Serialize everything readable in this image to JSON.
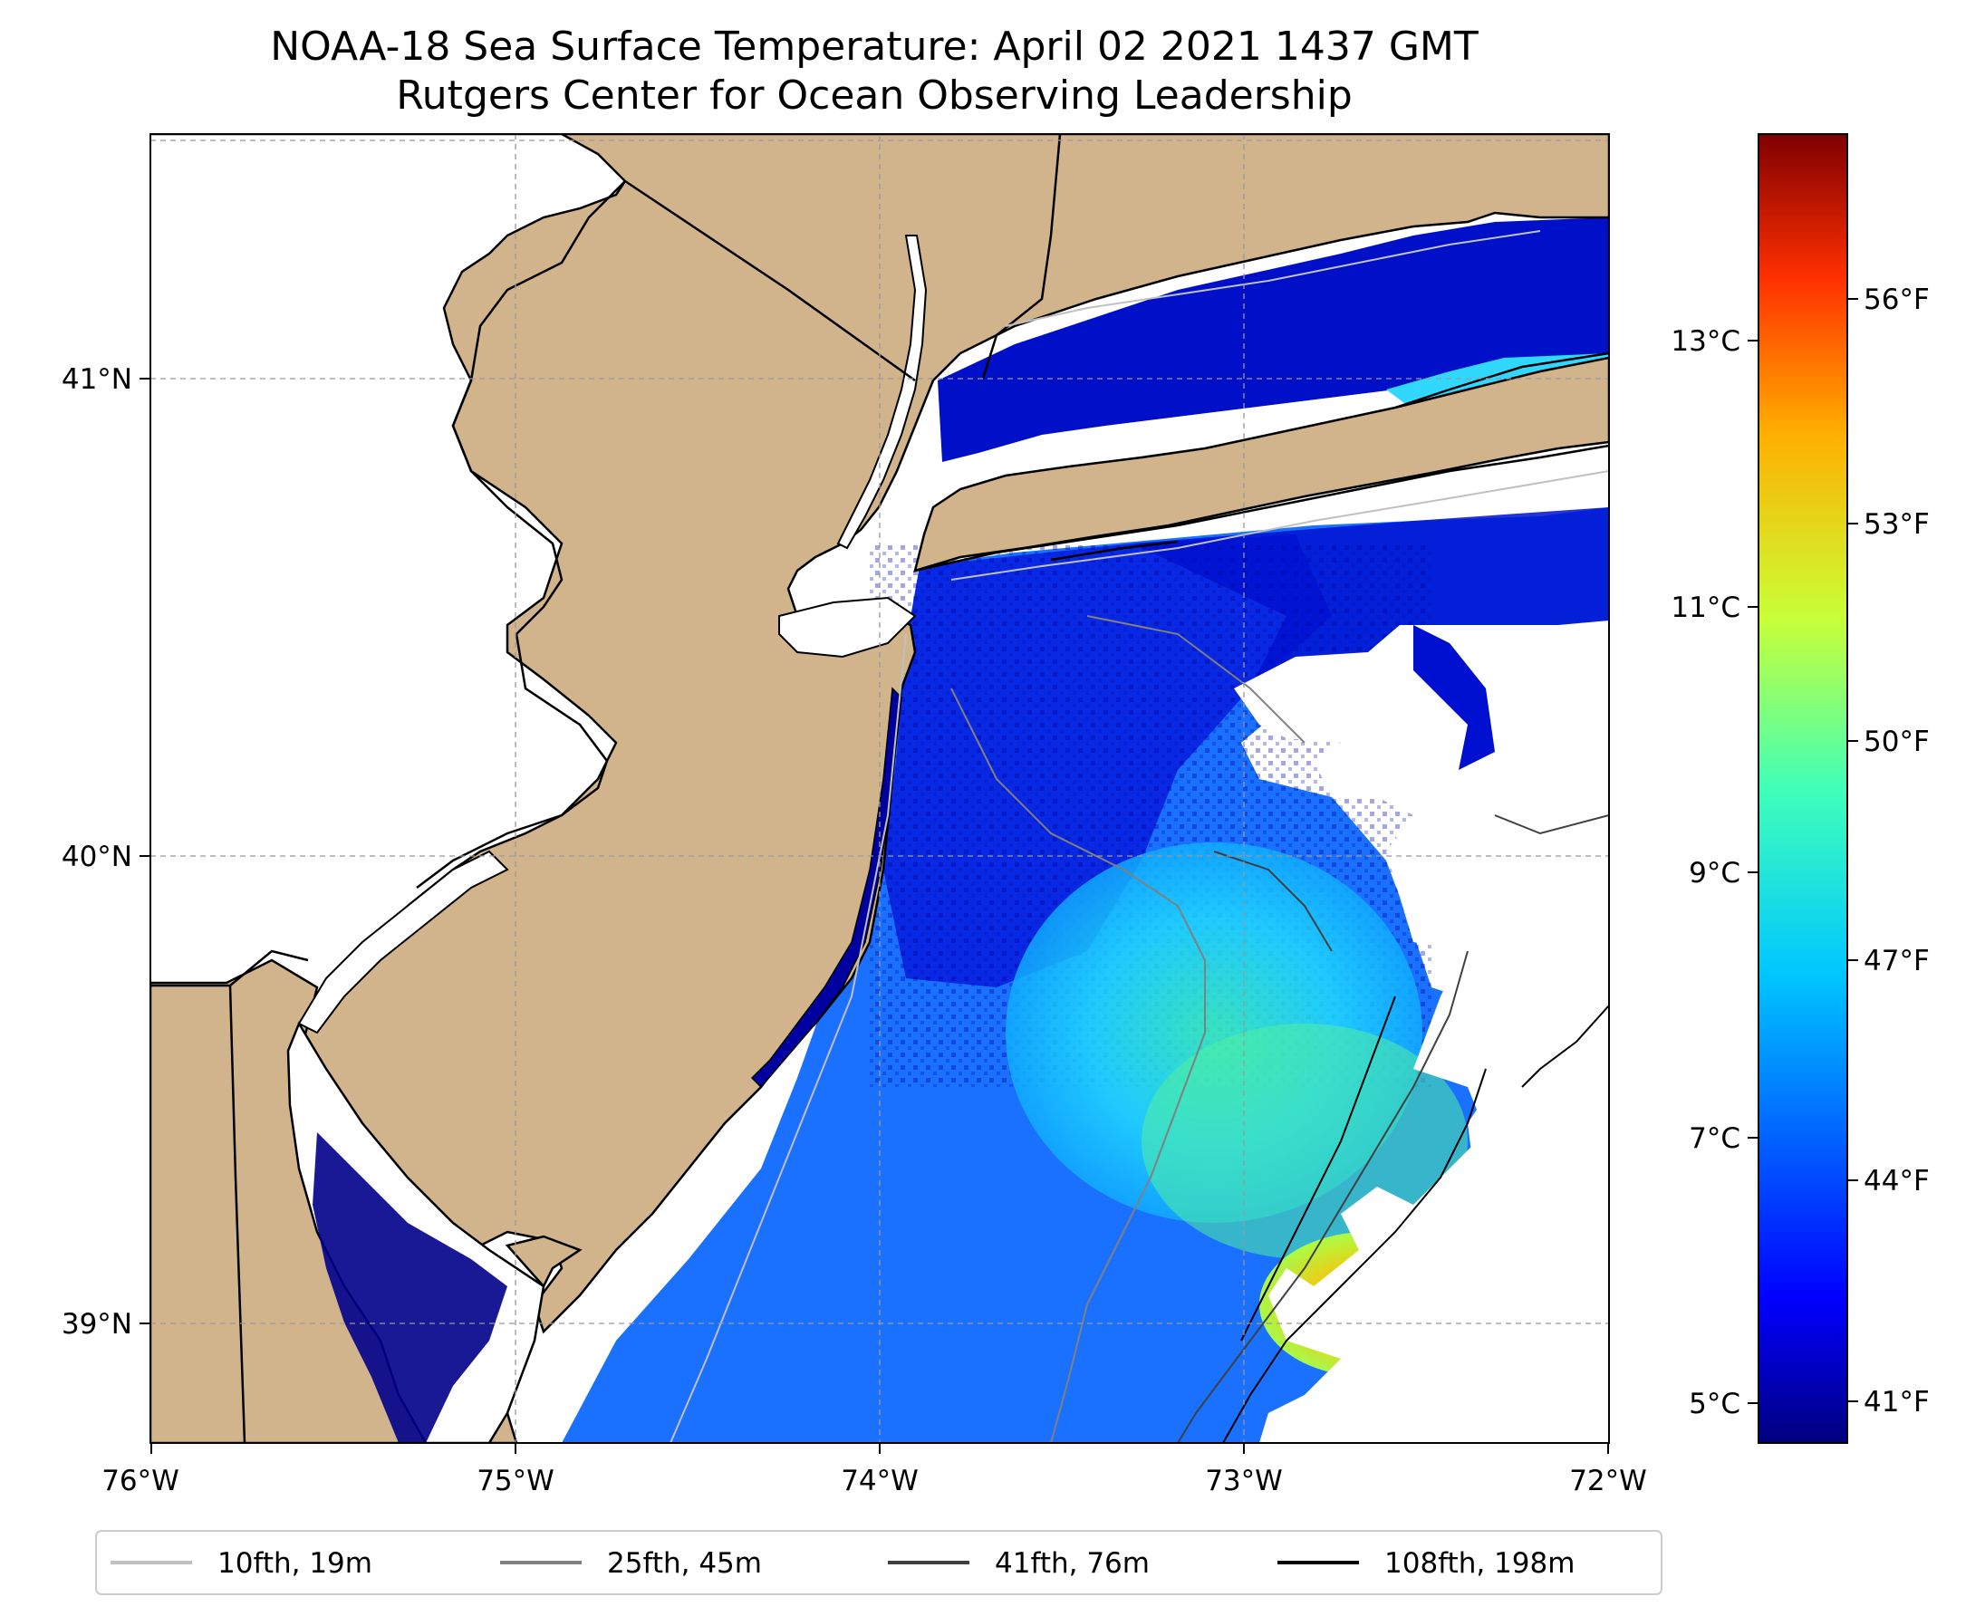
{
  "title": {
    "line1": "NOAA-18 Sea Surface Temperature: April 02 2021 1437 GMT",
    "line2": "Rutgers Center for Ocean Observing Leadership"
  },
  "map": {
    "lon_range": [
      -76,
      -72
    ],
    "lat_range": [
      38.75,
      41.5
    ],
    "x_ticks": [
      "76°W",
      "75°W",
      "74°W",
      "73°W",
      "72°W"
    ],
    "y_ticks": [
      "41°N",
      "40°N",
      "39°N"
    ],
    "land_color": "#d2b48c",
    "gridlines": true
  },
  "colorbar": {
    "colormap": "jet",
    "celsius_ticks": [
      "13°C",
      "11°C",
      "9°C",
      "7°C",
      "5°C"
    ],
    "fahrenheit_ticks": [
      "56°F",
      "53°F",
      "50°F",
      "47°F",
      "44°F",
      "41°F"
    ]
  },
  "legend": {
    "placement": "bottom",
    "items": [
      {
        "label": "10fth, 19m",
        "color": "#c0c0c0"
      },
      {
        "label": "25fth, 45m",
        "color": "#808080"
      },
      {
        "label": "41fth, 76m",
        "color": "#404040"
      },
      {
        "label": "108fth, 198m",
        "color": "#000000"
      }
    ]
  }
}
